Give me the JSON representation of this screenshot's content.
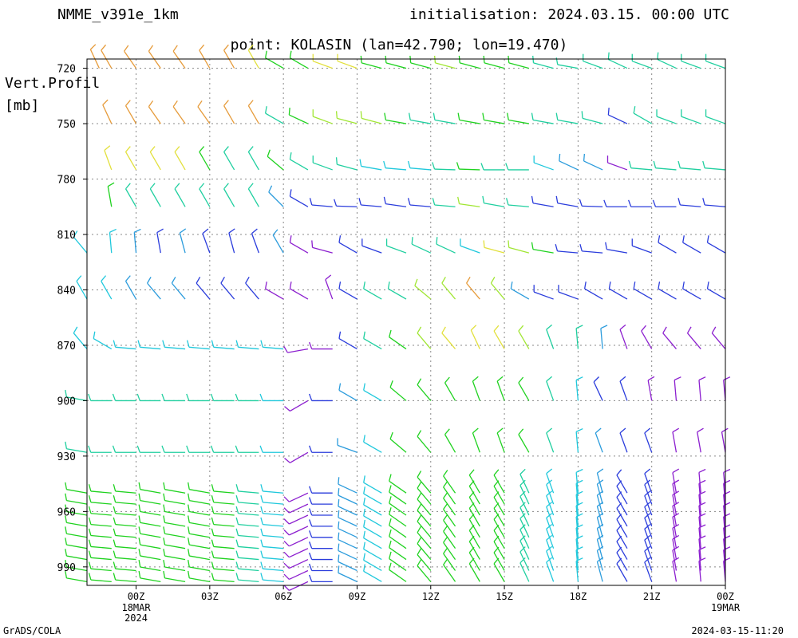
{
  "header": {
    "model": "NMME_v391e_1km",
    "initialisation": "initialisation: 2024.03.15. 00:00 UTC",
    "point": "point: KOLASIN (lan=42.790; lon=19.470)"
  },
  "axis": {
    "vertical_label": "Vert.Profil",
    "vertical_unit": "[mb]",
    "y_ticks": [
      "720",
      "750",
      "780",
      "810",
      "840",
      "870",
      "900",
      "930",
      "960",
      "990"
    ],
    "x_ticks": [
      "00Z",
      "03Z",
      "06Z",
      "09Z",
      "12Z",
      "15Z",
      "18Z",
      "21Z",
      "00Z"
    ],
    "x_date_start": [
      "18MAR",
      "2024"
    ],
    "x_date_end": [
      "19MAR"
    ]
  },
  "footer": {
    "credit": "GrADS/COLA",
    "timestamp": "2024-03-15-11:20"
  },
  "chart_data": {
    "type": "wind-barb time-height section",
    "xlim_hours": [
      -2,
      24
    ],
    "ylim_mb": [
      715,
      1000
    ],
    "grid": true,
    "colors": {
      "orange": "#e69b3a",
      "yellow": "#e2e03c",
      "lime": "#a0e632",
      "green": "#1fd21f",
      "teal": "#1fcf9f",
      "cyan": "#1fc8dc",
      "sky": "#2a9bdc",
      "blue": "#2a3cdc",
      "purple": "#8c1fcf"
    },
    "levels": [
      {
        "mb": 720,
        "times": [
          -1.5,
          -1,
          0,
          1,
          2,
          3,
          4,
          5,
          6,
          7,
          8,
          9,
          10,
          11,
          12,
          13,
          14,
          15,
          16,
          17,
          18,
          19,
          20,
          21,
          22,
          23,
          24
        ],
        "dir": [
          335,
          330,
          325,
          325,
          325,
          330,
          330,
          330,
          300,
          300,
          290,
          290,
          285,
          285,
          285,
          285,
          285,
          285,
          285,
          285,
          280,
          290,
          295,
          290,
          295,
          290,
          290
        ],
        "spd": [
          10,
          10,
          10,
          10,
          10,
          10,
          10,
          10,
          10,
          10,
          10,
          10,
          10,
          10,
          10,
          10,
          10,
          10,
          10,
          10,
          10,
          10,
          10,
          10,
          10,
          10,
          10
        ],
        "col": [
          "orange",
          "orange",
          "orange",
          "orange",
          "orange",
          "orange",
          "orange",
          "yellow",
          "green",
          "green",
          "yellow",
          "yellow",
          "green",
          "green",
          "green",
          "lime",
          "green",
          "green",
          "green",
          "teal",
          "teal",
          "teal",
          "teal",
          "teal",
          "teal",
          "teal",
          "teal"
        ]
      },
      {
        "mb": 750,
        "times": [
          -1,
          0,
          1,
          2,
          3,
          4,
          5,
          6,
          7,
          8,
          9,
          10,
          11,
          12,
          13,
          14,
          15,
          16,
          17,
          18,
          19,
          20,
          21,
          22,
          23,
          24
        ],
        "dir": [
          335,
          330,
          325,
          325,
          325,
          330,
          330,
          300,
          295,
          290,
          285,
          285,
          280,
          280,
          280,
          280,
          280,
          280,
          280,
          280,
          285,
          295,
          300,
          290,
          290,
          290
        ],
        "spd": [
          10,
          10,
          10,
          10,
          10,
          10,
          10,
          10,
          10,
          10,
          10,
          10,
          10,
          10,
          10,
          10,
          10,
          10,
          10,
          10,
          10,
          10,
          10,
          10,
          10,
          10
        ],
        "col": [
          "orange",
          "orange",
          "orange",
          "orange",
          "orange",
          "orange",
          "orange",
          "teal",
          "green",
          "lime",
          "lime",
          "lime",
          "green",
          "teal",
          "teal",
          "green",
          "green",
          "green",
          "teal",
          "teal",
          "teal",
          "blue",
          "teal",
          "teal",
          "teal",
          "teal"
        ]
      },
      {
        "mb": 775,
        "times": [
          -1,
          0,
          1,
          2,
          3,
          4,
          5,
          6,
          7,
          8,
          9,
          10,
          11,
          12,
          13,
          14,
          15,
          16,
          17,
          18,
          19,
          20,
          21,
          22,
          23,
          24
        ],
        "dir": [
          340,
          330,
          330,
          330,
          330,
          330,
          330,
          310,
          300,
          290,
          285,
          280,
          275,
          275,
          272,
          272,
          270,
          270,
          290,
          295,
          295,
          290,
          275,
          275,
          275,
          275
        ],
        "spd": [
          10,
          10,
          10,
          10,
          10,
          10,
          10,
          10,
          10,
          10,
          10,
          10,
          10,
          10,
          10,
          10,
          10,
          10,
          10,
          10,
          10,
          10,
          10,
          10,
          10,
          10
        ],
        "col": [
          "yellow",
          "yellow",
          "yellow",
          "yellow",
          "green",
          "teal",
          "teal",
          "green",
          "teal",
          "teal",
          "teal",
          "cyan",
          "cyan",
          "cyan",
          "teal",
          "green",
          "teal",
          "teal",
          "cyan",
          "sky",
          "sky",
          "purple",
          "teal",
          "teal",
          "teal",
          "teal"
        ]
      },
      {
        "mb": 795,
        "times": [
          -1,
          0,
          1,
          2,
          3,
          4,
          5,
          6,
          7,
          8,
          9,
          10,
          11,
          12,
          13,
          14,
          15,
          16,
          17,
          18,
          19,
          20,
          21,
          22,
          23,
          24
        ],
        "dir": [
          350,
          330,
          330,
          330,
          330,
          330,
          330,
          315,
          300,
          275,
          272,
          275,
          278,
          275,
          275,
          278,
          280,
          275,
          280,
          280,
          272,
          270,
          270,
          270,
          275,
          275
        ],
        "spd": [
          10,
          10,
          10,
          10,
          10,
          10,
          10,
          10,
          10,
          10,
          10,
          10,
          10,
          10,
          10,
          10,
          10,
          10,
          10,
          10,
          10,
          10,
          10,
          10,
          10,
          10
        ],
        "col": [
          "green",
          "teal",
          "teal",
          "teal",
          "teal",
          "teal",
          "teal",
          "sky",
          "blue",
          "blue",
          "blue",
          "blue",
          "blue",
          "blue",
          "teal",
          "lime",
          "teal",
          "teal",
          "blue",
          "blue",
          "blue",
          "blue",
          "blue",
          "blue",
          "blue",
          "blue"
        ]
      },
      {
        "mb": 820,
        "times": [
          -2,
          -1,
          0,
          1,
          2,
          3,
          4,
          5,
          6,
          7,
          8,
          9,
          10,
          11,
          12,
          13,
          14,
          15,
          16,
          17,
          18,
          19,
          20,
          21,
          22,
          23,
          24
        ],
        "dir": [
          320,
          355,
          355,
          350,
          345,
          340,
          345,
          340,
          330,
          300,
          285,
          300,
          290,
          290,
          295,
          295,
          290,
          285,
          285,
          280,
          275,
          275,
          280,
          290,
          300,
          300,
          300
        ],
        "spd": [
          10,
          10,
          10,
          10,
          10,
          10,
          10,
          10,
          10,
          10,
          10,
          10,
          10,
          10,
          10,
          10,
          10,
          10,
          10,
          10,
          10,
          10,
          10,
          10,
          10,
          10,
          10
        ],
        "col": [
          "cyan",
          "cyan",
          "sky",
          "blue",
          "sky",
          "blue",
          "blue",
          "blue",
          "sky",
          "purple",
          "purple",
          "blue",
          "blue",
          "teal",
          "teal",
          "teal",
          "cyan",
          "yellow",
          "lime",
          "green",
          "blue",
          "blue",
          "blue",
          "blue",
          "blue",
          "blue",
          "blue"
        ]
      },
      {
        "mb": 845,
        "times": [
          -2,
          -1,
          0,
          1,
          2,
          3,
          4,
          5,
          6,
          7,
          8,
          9,
          10,
          11,
          12,
          13,
          14,
          15,
          16,
          17,
          18,
          19,
          20,
          21,
          22,
          23,
          24
        ],
        "dir": [
          330,
          330,
          330,
          320,
          320,
          320,
          320,
          320,
          300,
          300,
          340,
          300,
          300,
          300,
          310,
          320,
          320,
          320,
          300,
          290,
          290,
          300,
          300,
          300,
          300,
          300,
          300
        ],
        "spd": [
          10,
          10,
          10,
          10,
          10,
          10,
          10,
          10,
          10,
          10,
          10,
          10,
          10,
          10,
          10,
          10,
          10,
          10,
          10,
          10,
          10,
          10,
          10,
          10,
          10,
          10,
          10
        ],
        "col": [
          "cyan",
          "cyan",
          "sky",
          "sky",
          "sky",
          "blue",
          "blue",
          "blue",
          "purple",
          "purple",
          "purple",
          "blue",
          "teal",
          "teal",
          "lime",
          "lime",
          "orange",
          "lime",
          "sky",
          "blue",
          "blue",
          "blue",
          "blue",
          "blue",
          "blue",
          "blue",
          "blue"
        ]
      },
      {
        "mb": 872,
        "times": [
          -2,
          -1,
          0,
          1,
          2,
          3,
          4,
          5,
          6,
          7,
          8,
          9,
          10,
          11,
          12,
          13,
          14,
          15,
          16,
          17,
          18,
          19,
          20,
          21,
          22,
          23,
          24
        ],
        "dir": [
          320,
          300,
          275,
          275,
          275,
          275,
          275,
          275,
          275,
          260,
          270,
          300,
          300,
          305,
          320,
          320,
          335,
          330,
          330,
          340,
          355,
          355,
          340,
          330,
          320,
          320,
          320
        ],
        "spd": [
          10,
          10,
          10,
          10,
          10,
          10,
          10,
          10,
          10,
          10,
          10,
          10,
          10,
          10,
          10,
          10,
          10,
          10,
          10,
          10,
          10,
          10,
          10,
          10,
          10,
          10,
          10
        ],
        "col": [
          "cyan",
          "cyan",
          "cyan",
          "cyan",
          "cyan",
          "cyan",
          "cyan",
          "cyan",
          "cyan",
          "purple",
          "purple",
          "blue",
          "teal",
          "green",
          "lime",
          "yellow",
          "yellow",
          "yellow",
          "lime",
          "teal",
          "teal",
          "sky",
          "purple",
          "purple",
          "purple",
          "purple",
          "purple"
        ]
      },
      {
        "mb": 900,
        "times": [
          -2,
          -1,
          0,
          1,
          2,
          3,
          4,
          5,
          6,
          7,
          8,
          9,
          10,
          11,
          12,
          13,
          14,
          15,
          16,
          17,
          18,
          19,
          20,
          21,
          22,
          23,
          24
        ],
        "dir": [
          280,
          270,
          270,
          270,
          270,
          270,
          270,
          270,
          270,
          240,
          270,
          300,
          300,
          310,
          320,
          330,
          340,
          340,
          330,
          340,
          355,
          335,
          340,
          350,
          355,
          355,
          355
        ],
        "spd": [
          10,
          10,
          10,
          10,
          10,
          10,
          10,
          10,
          10,
          10,
          10,
          10,
          10,
          10,
          10,
          10,
          10,
          10,
          10,
          10,
          10,
          10,
          10,
          10,
          10,
          10,
          10
        ],
        "col": [
          "teal",
          "teal",
          "teal",
          "teal",
          "teal",
          "teal",
          "teal",
          "teal",
          "cyan",
          "purple",
          "blue",
          "sky",
          "cyan",
          "green",
          "green",
          "green",
          "green",
          "green",
          "green",
          "teal",
          "cyan",
          "blue",
          "blue",
          "purple",
          "purple",
          "purple",
          "purple"
        ]
      },
      {
        "mb": 928,
        "times": [
          -2,
          -1,
          0,
          1,
          2,
          3,
          4,
          5,
          6,
          7,
          8,
          9,
          10,
          11,
          12,
          13,
          14,
          15,
          16,
          17,
          18,
          19,
          20,
          21,
          22,
          23,
          24
        ],
        "dir": [
          280,
          270,
          270,
          270,
          270,
          270,
          270,
          270,
          270,
          240,
          270,
          290,
          300,
          310,
          320,
          330,
          340,
          340,
          330,
          340,
          355,
          340,
          340,
          340,
          350,
          350,
          350
        ],
        "spd": [
          10,
          10,
          10,
          10,
          10,
          10,
          10,
          10,
          10,
          10,
          10,
          10,
          10,
          10,
          10,
          10,
          10,
          10,
          10,
          10,
          10,
          10,
          10,
          10,
          10,
          10,
          10
        ],
        "col": [
          "teal",
          "teal",
          "teal",
          "teal",
          "teal",
          "teal",
          "teal",
          "teal",
          "cyan",
          "purple",
          "blue",
          "sky",
          "cyan",
          "green",
          "green",
          "green",
          "green",
          "green",
          "green",
          "teal",
          "cyan",
          "sky",
          "blue",
          "blue",
          "purple",
          "purple",
          "purple"
        ]
      },
      {
        "mb": 950,
        "times": [
          -2,
          -1,
          0,
          1,
          2,
          3,
          4,
          5,
          6,
          7,
          8,
          9,
          10,
          11,
          12,
          13,
          14,
          15,
          16,
          17,
          18,
          19,
          20,
          21,
          22,
          23,
          24
        ],
        "dir": [
          280,
          275,
          275,
          280,
          280,
          280,
          275,
          275,
          275,
          245,
          270,
          295,
          300,
          305,
          320,
          325,
          330,
          330,
          335,
          340,
          355,
          345,
          330,
          340,
          350,
          355,
          355
        ],
        "spd": [
          10,
          10,
          10,
          10,
          10,
          10,
          10,
          10,
          10,
          10,
          10,
          10,
          10,
          10,
          10,
          10,
          10,
          10,
          10,
          10,
          10,
          10,
          10,
          10,
          10,
          10,
          10
        ],
        "col": [
          "green",
          "green",
          "green",
          "green",
          "green",
          "green",
          "green",
          "teal",
          "cyan",
          "purple",
          "blue",
          "sky",
          "cyan",
          "green",
          "green",
          "green",
          "green",
          "green",
          "teal",
          "cyan",
          "cyan",
          "sky",
          "blue",
          "blue",
          "purple",
          "purple",
          "purple"
        ]
      }
    ]
  }
}
